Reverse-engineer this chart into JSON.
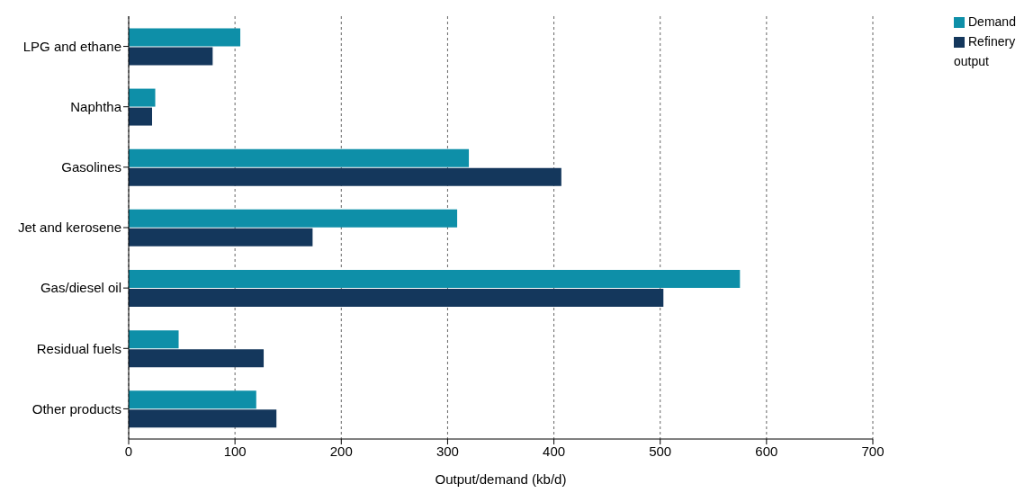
{
  "chart_data": {
    "type": "bar",
    "orientation": "horizontal",
    "xlabel": "Output/demand (kb/d)",
    "categories": [
      "LPG and ethane",
      "Naphtha",
      "Gasolines",
      "Jet and kerosene",
      "Gas/diesel oil",
      "Residual fuels",
      "Other products"
    ],
    "series": [
      {
        "name": "Demand",
        "color": "#0e8fa8",
        "values": [
          105,
          25,
          320,
          309,
          575,
          47,
          120
        ]
      },
      {
        "name": "Refinery output",
        "color": "#14375c",
        "values": [
          79,
          22,
          407,
          173,
          503,
          127,
          139
        ]
      }
    ],
    "xlim": [
      0,
      700
    ],
    "xticks": [
      0,
      100,
      200,
      300,
      400,
      500,
      600,
      700
    ],
    "grid": "x",
    "legend": "top right"
  }
}
